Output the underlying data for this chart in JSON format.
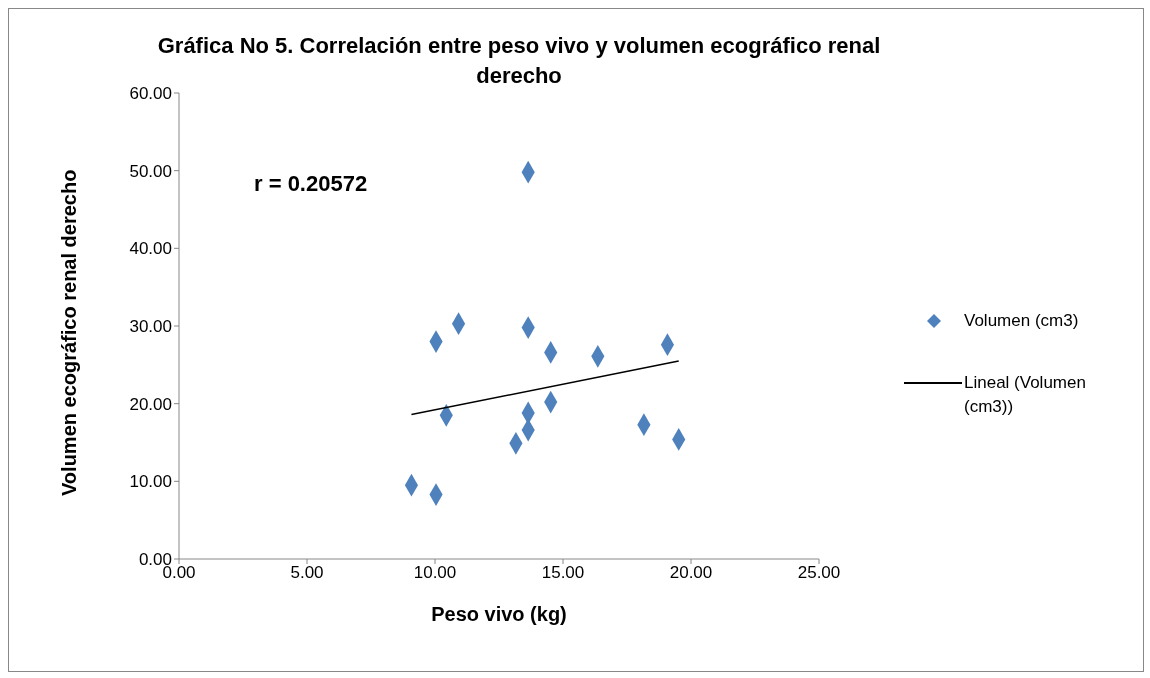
{
  "chart_data": {
    "type": "scatter",
    "title": "Gráfica No 5. Correlación entre peso vivo y volumen ecográfico renal derecho",
    "xlabel": "Peso vivo (kg)",
    "ylabel": "Volumen ecográfico renal derecho",
    "xlim": [
      0,
      25
    ],
    "xticks": [
      {
        "value": 0,
        "label": "0.00"
      },
      {
        "value": 5,
        "label": "5.00"
      },
      {
        "value": 10,
        "label": "10.00"
      },
      {
        "value": 15,
        "label": "15.00"
      },
      {
        "value": 20,
        "label": "20.00"
      },
      {
        "value": 25,
        "label": "25.00"
      }
    ],
    "ylim": [
      0,
      60
    ],
    "yticks": [
      {
        "value": 0,
        "label": "0.00"
      },
      {
        "value": 10,
        "label": "10.00"
      },
      {
        "value": 20,
        "label": "20.00"
      },
      {
        "value": 30,
        "label": "30.00"
      },
      {
        "value": 40,
        "label": "40.00"
      },
      {
        "value": 50,
        "label": "50.00"
      },
      {
        "value": 60,
        "label": "60.00"
      }
    ],
    "grid": false,
    "legend": "right",
    "marker": "diamond",
    "annotations": [
      "r = 0.20572"
    ],
    "series": [
      {
        "name": "Volumen (cm3)",
        "type": "scatter",
        "color": "#4f81bd",
        "x": [
          9.08,
          10.04,
          10.04,
          10.92,
          10.44,
          13.64,
          13.64,
          13.64,
          13.64,
          13.16,
          14.52,
          14.52,
          16.36,
          19.08,
          18.16,
          19.52
        ],
        "values": [
          9.5,
          8.3,
          28.0,
          30.3,
          18.5,
          49.8,
          29.8,
          18.8,
          16.6,
          14.9,
          20.2,
          26.6,
          26.1,
          27.6,
          17.3,
          15.4
        ]
      },
      {
        "name": "Lineal (Volumen (cm3))",
        "type": "line",
        "color": "#000000",
        "line_style": "solid",
        "marker": "none",
        "x": [
          9.08,
          19.52
        ],
        "values": [
          18.6,
          25.5
        ]
      }
    ]
  }
}
